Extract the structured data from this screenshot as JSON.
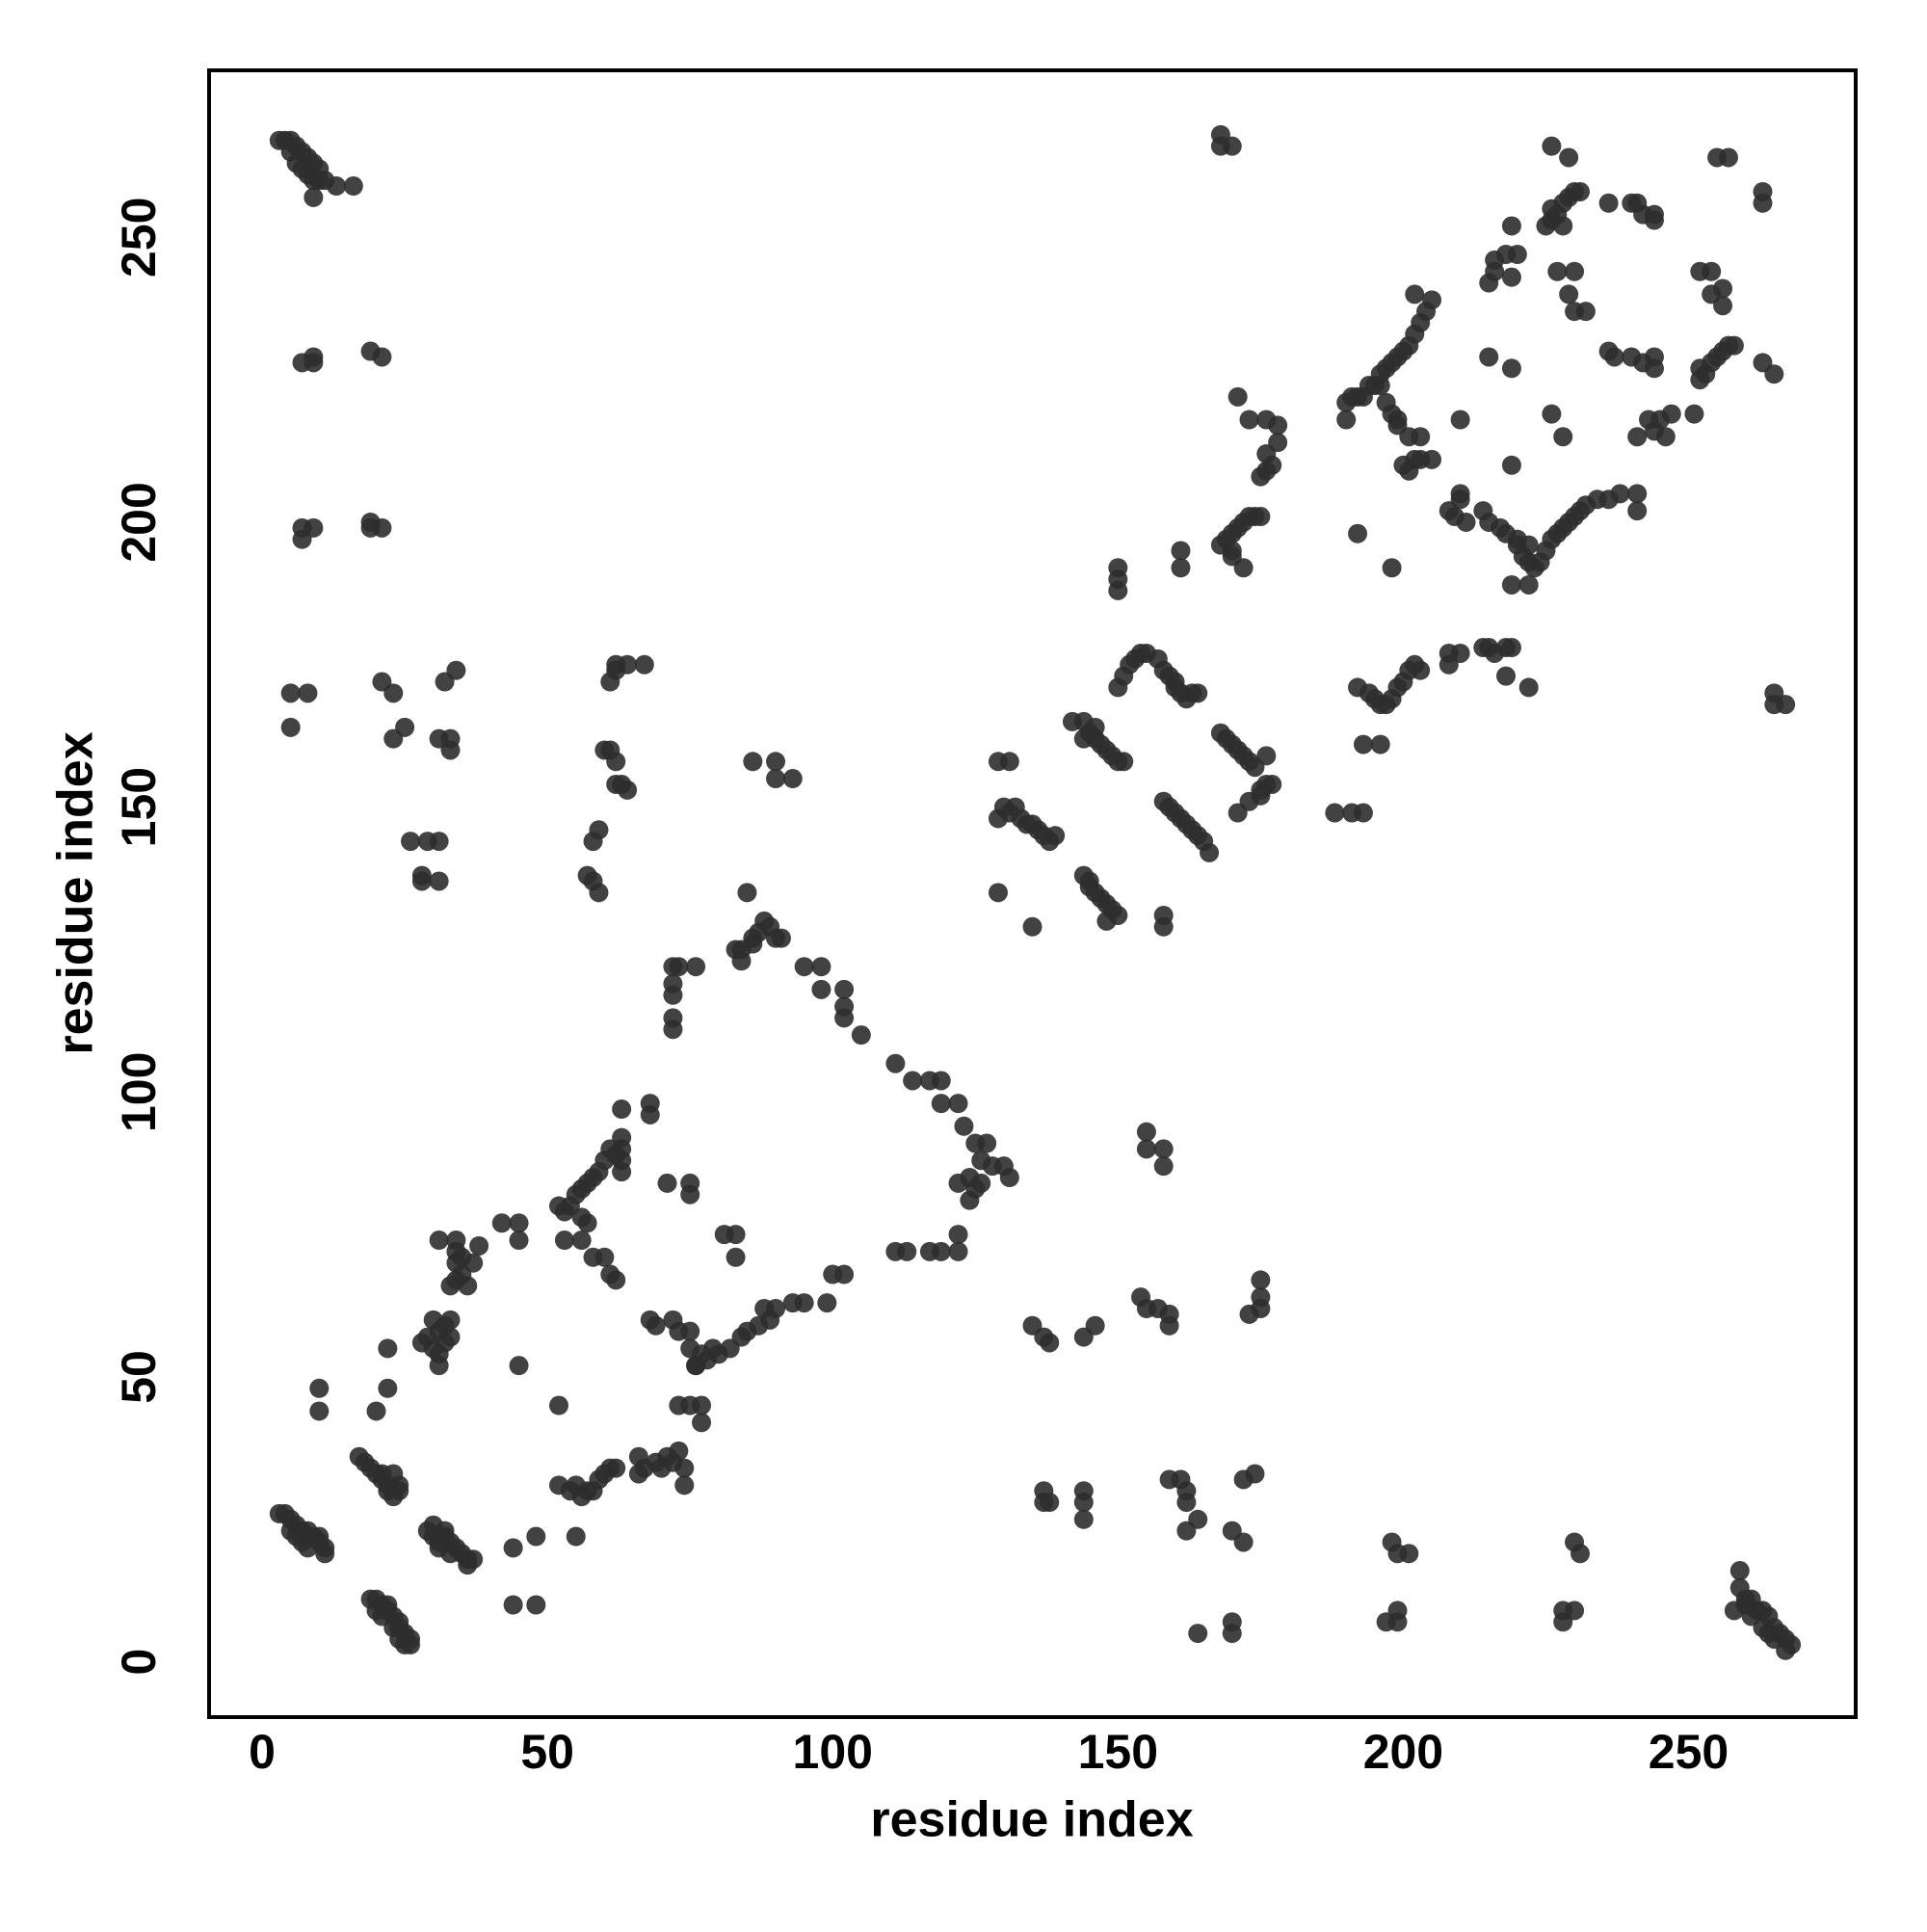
{
  "chart_data": {
    "type": "scatter",
    "x_label": "residue index",
    "y_label": "residue index",
    "xlim": [
      -9.3,
      279.3
    ],
    "ylim": [
      -9.7,
      279.3
    ],
    "xticks": [
      0,
      50,
      100,
      150,
      200,
      250
    ],
    "yticks": [
      0,
      50,
      100,
      150,
      200,
      250
    ],
    "color": "#2e2e2e",
    "x": [
      3,
      4,
      5,
      6,
      7,
      8,
      9,
      10,
      8,
      9,
      10,
      11,
      13,
      16,
      9,
      5,
      6,
      7,
      7,
      9,
      9,
      19,
      21,
      7,
      9,
      7,
      19,
      21,
      19,
      5,
      8,
      5,
      21,
      23,
      23,
      25,
      31,
      33,
      33,
      32,
      34,
      26,
      29,
      31,
      28,
      31,
      28,
      57,
      58,
      59,
      58,
      59,
      60,
      61,
      62,
      62,
      61,
      62,
      64,
      67,
      62,
      63,
      64,
      86,
      90,
      90,
      93,
      84,
      86,
      87,
      88,
      89,
      90,
      85,
      86,
      83,
      84,
      91,
      95,
      98,
      98,
      102,
      102,
      102,
      105,
      111,
      114,
      117,
      119,
      119,
      122,
      123,
      125,
      127,
      126,
      128,
      130,
      124,
      126,
      125,
      124,
      122,
      131,
      122,
      122,
      117,
      119,
      113,
      111,
      102,
      100,
      99,
      95,
      93,
      90,
      88,
      89,
      87,
      85,
      84,
      82,
      80,
      78,
      76,
      77,
      79,
      72,
      73,
      76,
      72,
      72,
      72,
      72,
      3,
      4,
      5,
      6,
      7,
      8,
      9,
      10,
      11,
      11,
      10,
      5,
      6,
      7,
      8,
      19,
      20,
      21,
      22,
      22,
      23,
      24,
      24,
      25,
      26,
      26,
      25,
      20,
      21,
      23,
      24,
      17,
      18,
      19,
      20,
      21,
      22,
      22,
      23,
      24,
      24,
      21,
      23,
      29,
      30,
      30,
      31,
      32,
      32,
      33,
      34,
      35,
      36,
      37,
      31,
      33,
      28,
      29,
      30,
      31,
      31,
      32,
      33,
      33,
      32,
      33,
      34,
      34,
      34,
      35,
      35,
      36,
      37,
      38,
      31,
      34,
      30,
      31,
      22,
      22,
      10,
      10,
      20,
      36,
      42,
      45,
      45,
      45,
      44,
      48,
      44,
      48,
      52,
      53,
      54,
      55,
      56,
      57,
      58,
      59,
      60,
      61,
      62,
      63,
      63,
      63,
      68,
      68,
      57,
      53,
      56,
      58,
      60,
      61,
      62,
      63,
      63,
      52,
      52,
      54,
      55,
      56,
      57,
      58,
      59,
      60,
      61,
      62,
      66,
      67,
      69,
      70,
      71,
      72,
      73,
      74,
      74,
      66,
      55,
      71,
      75,
      75,
      68,
      69,
      72,
      73,
      75,
      75,
      76,
      73,
      75,
      77,
      77,
      81,
      83,
      83,
      56,
      129,
      131,
      129,
      130,
      131,
      132,
      133,
      134,
      135,
      136,
      137,
      138,
      139,
      129,
      135,
      142,
      144,
      145,
      146,
      147,
      148,
      149,
      150,
      151,
      146,
      144,
      144,
      145,
      146,
      147,
      148,
      148,
      149,
      150,
      145,
      150,
      151,
      152,
      153,
      154,
      155,
      157,
      158,
      159,
      160,
      161,
      162,
      163,
      164,
      160,
      158,
      159,
      160,
      161,
      162,
      163,
      164,
      165,
      166,
      158,
      158,
      150,
      150,
      150,
      161,
      161,
      168,
      169,
      170,
      171,
      172,
      173,
      174,
      175,
      170,
      172,
      170,
      171,
      173,
      176,
      178,
      178,
      177,
      176,
      175,
      176,
      168,
      169,
      170,
      171,
      172,
      173,
      174,
      175,
      176,
      177,
      176,
      173,
      171,
      175,
      168,
      170,
      168,
      188,
      191,
      193,
      190,
      190,
      191,
      192,
      193,
      194,
      195,
      196,
      197,
      198,
      199,
      200,
      201,
      202,
      203,
      204,
      205,
      202,
      196,
      197,
      198,
      199,
      199,
      201,
      203,
      200,
      201,
      202,
      203,
      205,
      192,
      198,
      192,
      194,
      195,
      196,
      197,
      198,
      199,
      200,
      201,
      202,
      203,
      193,
      196,
      208,
      208,
      210,
      214,
      215,
      216,
      218,
      219,
      218,
      222,
      208,
      209,
      210,
      210,
      211,
      214,
      215,
      217,
      218,
      220,
      221,
      222,
      223,
      224,
      225,
      226,
      227,
      228,
      229,
      230,
      231,
      232,
      234,
      236,
      238,
      241,
      241,
      219,
      222,
      220,
      222,
      210,
      215,
      219,
      219,
      215,
      216,
      216,
      218,
      219,
      220,
      219,
      225,
      226,
      227,
      228,
      229,
      230,
      231,
      226,
      228,
      226,
      229,
      227,
      230,
      229,
      230,
      232,
      236,
      240,
      241,
      242,
      244,
      244,
      226,
      228,
      236,
      237,
      240,
      242,
      244,
      244,
      241,
      243,
      244,
      245,
      246,
      247,
      251,
      252,
      252,
      253,
      254,
      255,
      256,
      257,
      258,
      252,
      254,
      254,
      256,
      256,
      255,
      257,
      263,
      263,
      263,
      265,
      265,
      267,
      265,
      135,
      137,
      138,
      144,
      146,
      154,
      155,
      157,
      159,
      159,
      155,
      155,
      158,
      158,
      173,
      175,
      175,
      175,
      137,
      137,
      138,
      144,
      144,
      144,
      159,
      161,
      162,
      162,
      162,
      164,
      164,
      170,
      172,
      172,
      174,
      170,
      170,
      198,
      199,
      201,
      197,
      199,
      199,
      228,
      228,
      230,
      230,
      231,
      259,
      259,
      258,
      260,
      260,
      261,
      262,
      263,
      264,
      263,
      264,
      265,
      266,
      267,
      268,
      267,
      265,
      261
    ],
    "values": [
      267,
      267,
      267,
      266,
      265,
      264,
      263,
      262,
      261,
      260,
      260,
      260,
      259,
      259,
      257,
      265,
      263,
      262,
      228,
      229,
      228,
      230,
      229,
      199,
      199,
      197,
      200,
      199,
      199,
      170,
      170,
      164,
      172,
      170,
      162,
      164,
      162,
      162,
      160,
      172,
      174,
      144,
      144,
      144,
      137,
      137,
      138,
      138,
      137,
      135,
      144,
      146,
      160,
      160,
      158,
      174,
      172,
      175,
      175,
      175,
      154,
      154,
      153,
      158,
      158,
      155,
      155,
      125,
      127,
      128,
      130,
      129,
      127,
      135,
      126,
      125,
      123,
      127,
      122,
      122,
      118,
      118,
      115,
      113,
      110,
      105,
      102,
      102,
      102,
      98,
      98,
      94,
      91,
      91,
      88,
      87,
      87,
      85,
      84,
      83,
      81,
      84,
      85,
      75,
      72,
      72,
      72,
      72,
      72,
      68,
      68,
      63,
      63,
      63,
      62,
      62,
      60,
      59,
      58,
      57,
      55,
      54,
      53,
      52,
      54,
      55,
      122,
      122,
      122,
      119,
      117,
      113,
      111,
      26,
      26,
      25,
      24,
      23,
      23,
      22,
      21,
      20,
      19,
      22,
      23,
      22,
      21,
      20,
      11,
      11,
      10,
      9,
      10,
      8,
      7,
      6,
      5,
      4,
      3,
      3,
      9,
      8,
      6,
      4,
      36,
      35,
      34,
      33,
      32,
      31,
      30,
      29,
      30,
      31,
      33,
      33,
      23,
      22,
      24,
      21,
      22,
      23,
      21,
      20,
      19,
      18,
      18,
      20,
      19,
      56,
      57,
      55,
      54,
      58,
      59,
      60,
      57,
      56,
      66,
      67,
      70,
      72,
      68,
      71,
      66,
      70,
      73,
      74,
      74,
      60,
      52,
      55,
      48,
      48,
      44,
      44,
      17,
      77,
      77,
      74,
      52,
      20,
      22,
      10,
      10,
      80,
      79,
      80,
      82,
      83,
      84,
      85,
      86,
      88,
      90,
      89,
      90,
      92,
      97,
      98,
      96,
      77,
      74,
      74,
      71,
      71,
      68,
      67,
      88,
      86,
      45,
      31,
      30,
      31,
      29,
      30,
      30,
      32,
      33,
      34,
      34,
      33,
      34,
      35,
      34,
      36,
      35,
      37,
      34,
      31,
      36,
      22,
      84,
      84,
      82,
      60,
      59,
      60,
      58,
      58,
      55,
      52,
      45,
      45,
      45,
      42,
      75,
      75,
      71,
      78,
      158,
      158,
      148,
      150,
      149,
      150,
      148,
      147,
      147,
      146,
      145,
      144,
      145,
      135,
      129,
      165,
      165,
      163,
      162,
      161,
      160,
      159,
      158,
      158,
      164,
      162,
      138,
      137,
      135,
      134,
      133,
      130,
      132,
      131,
      136,
      171,
      173,
      175,
      176,
      177,
      177,
      176,
      174,
      173,
      172,
      170,
      169,
      170,
      170,
      171,
      151,
      150,
      149,
      148,
      147,
      146,
      145,
      144,
      142,
      131,
      129,
      192,
      190,
      188,
      195,
      192,
      196,
      197,
      198,
      199,
      200,
      201,
      201,
      201,
      195,
      192,
      194,
      222,
      218,
      218,
      217,
      214,
      210,
      209,
      208,
      212,
      163,
      162,
      161,
      160,
      159,
      158,
      157,
      153,
      154,
      154,
      159,
      151,
      149,
      152,
      268,
      266,
      266,
      149,
      149,
      149,
      218,
      221,
      222,
      222,
      222,
      224,
      224,
      226,
      227,
      228,
      229,
      230,
      231,
      233,
      235,
      237,
      239,
      240,
      224,
      221,
      219,
      217,
      218,
      215,
      215,
      210,
      209,
      211,
      211,
      211,
      198,
      192,
      171,
      170,
      169,
      168,
      168,
      169,
      171,
      172,
      174,
      175,
      174,
      161,
      161,
      177,
      175,
      177,
      178,
      178,
      177,
      178,
      178,
      173,
      171,
      202,
      201,
      204,
      205,
      200,
      202,
      200,
      199,
      198,
      196,
      194,
      193,
      192,
      193,
      195,
      197,
      198,
      199,
      200,
      201,
      202,
      203,
      204,
      204,
      205,
      205,
      202,
      189,
      189,
      197,
      196,
      218,
      229,
      227,
      210,
      242,
      244,
      246,
      247,
      243,
      247,
      252,
      252,
      253,
      254,
      256,
      257,
      258,
      258,
      255,
      252,
      266,
      264,
      244,
      244,
      240,
      237,
      237,
      256,
      256,
      256,
      254,
      253,
      254,
      219,
      215,
      230,
      229,
      229,
      228,
      229,
      227,
      215,
      218,
      216,
      218,
      215,
      219,
      219,
      225,
      227,
      226,
      228,
      229,
      230,
      231,
      231,
      244,
      244,
      240,
      241,
      238,
      264,
      264,
      258,
      256,
      228,
      226,
      170,
      168,
      168,
      59,
      57,
      56,
      57,
      59,
      64,
      62,
      62,
      61,
      59,
      93,
      90,
      90,
      87,
      61,
      62,
      64,
      67,
      30,
      28,
      28,
      30,
      28,
      25,
      32,
      32,
      30,
      28,
      23,
      25,
      5,
      23,
      21,
      32,
      33,
      7,
      5,
      21,
      19,
      19,
      7,
      7,
      9,
      7,
      9,
      9,
      21,
      19,
      16,
      13,
      9,
      10,
      11,
      8,
      9,
      9,
      8,
      6,
      5,
      4,
      5,
      4,
      3,
      2,
      6,
      11
    ]
  }
}
